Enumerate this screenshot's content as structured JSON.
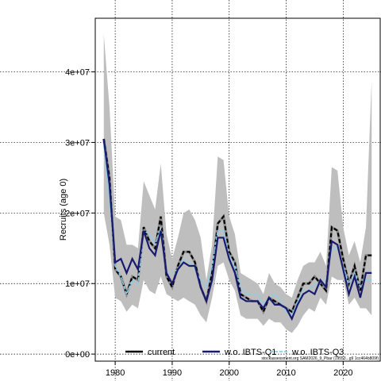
{
  "chart_data": {
    "type": "line",
    "title": "",
    "xlabel": "",
    "ylabel": "Recruits (age 0)",
    "xlim": [
      1976.5,
      2026.5
    ],
    "ylim": [
      -1000000,
      47600000
    ],
    "x_ticks": [
      1980,
      1990,
      2000,
      2010,
      2020
    ],
    "y_ticks": [
      0,
      10000000,
      20000000,
      30000000,
      40000000
    ],
    "y_tick_labels": [
      "0e+00",
      "1e+07",
      "2e+07",
      "3e+07",
      "4e+07"
    ],
    "grid": true,
    "legend_position": "bottom",
    "footnote": "stockassessment.org SAM2026_9_Pbar (19553...g9 1cc464b809f)",
    "x": [
      1978,
      1979,
      1980,
      1981,
      1982,
      1983,
      1984,
      1985,
      1986,
      1987,
      1988,
      1989,
      1990,
      1991,
      1992,
      1993,
      1994,
      1995,
      1996,
      1997,
      1998,
      1999,
      2000,
      2001,
      2002,
      2003,
      2004,
      2005,
      2006,
      2007,
      2008,
      2009,
      2010,
      2011,
      2012,
      2013,
      2014,
      2015,
      2016,
      2017,
      2018,
      2019,
      2020,
      2021,
      2022,
      2023,
      2024,
      2025
    ],
    "confidence_band": {
      "lower": [
        20000000,
        15500000,
        8000000,
        7500000,
        6000000,
        7000000,
        6500000,
        10500000,
        9000000,
        8500000,
        11000000,
        8500000,
        8000000,
        7500000,
        8000000,
        7500000,
        7000000,
        5500000,
        4500000,
        8000000,
        12500000,
        13000000,
        10500000,
        9000000,
        5500000,
        5000000,
        5000000,
        5000000,
        4000000,
        5000000,
        4500000,
        4500000,
        3500000,
        3000000,
        4000000,
        5500000,
        6500000,
        6000000,
        8000000,
        7000000,
        11000000,
        10500000,
        10500000,
        7000000,
        8000000,
        6500000,
        6500000,
        5500000
      ],
      "upper": [
        45300000,
        35000000,
        19500000,
        19000000,
        15500000,
        15500000,
        15000000,
        24500000,
        22500000,
        20500000,
        27000000,
        17000000,
        13500000,
        16500000,
        20000000,
        20500000,
        19000000,
        16500000,
        10500000,
        15500000,
        28000000,
        27500000,
        19500000,
        17000000,
        11500000,
        11000000,
        10500000,
        10000000,
        8500000,
        11500000,
        10000000,
        9500000,
        8500000,
        8000000,
        10500000,
        12500000,
        13000000,
        13000000,
        14500000,
        12500000,
        26500000,
        26000000,
        18000000,
        14000000,
        16000000,
        13000000,
        18000000,
        38800000
      ]
    },
    "series": [
      {
        "name": "current",
        "color": "#000000",
        "style": "dashed-over-gray",
        "values": [
          30500000,
          25000000,
          12000000,
          11000000,
          8500000,
          11000000,
          10500000,
          18000000,
          16000000,
          15000000,
          19500000,
          11000000,
          9500000,
          12500000,
          14500000,
          14500000,
          13000000,
          9500000,
          7500000,
          11500000,
          18500000,
          19500000,
          14500000,
          13000000,
          8500000,
          8000000,
          7500000,
          7500000,
          6000000,
          8000000,
          7500000,
          7000000,
          6500000,
          6000000,
          8000000,
          10000000,
          10000000,
          11000000,
          10000000,
          9000000,
          18000000,
          17500000,
          13500000,
          10000000,
          12500000,
          9000000,
          14000000,
          14000000
        ]
      },
      {
        "name": "w.o. IBTS-Q1",
        "color": "#191970",
        "style": "solid",
        "values": [
          30500000,
          24000000,
          13000000,
          13500000,
          11500000,
          13500000,
          12000000,
          17500000,
          15000000,
          14000000,
          17500000,
          11500000,
          10000000,
          12000000,
          13000000,
          12500000,
          12500000,
          9500000,
          7500000,
          10500000,
          16500000,
          16500000,
          13500000,
          11500000,
          8000000,
          7500000,
          7500000,
          7500000,
          6500000,
          8000000,
          7000000,
          7000000,
          6500000,
          5000000,
          7000000,
          8500000,
          9000000,
          8500000,
          10500000,
          9500000,
          16000000,
          15500000,
          12000000,
          8500000,
          11000000,
          8000000,
          11500000,
          11500000
        ]
      },
      {
        "name": "w.o. IBTS-Q3",
        "color": "#87ceeb",
        "style": "dashed",
        "values": [
          29500000,
          22000000,
          12500000,
          11000000,
          8500000,
          10500000,
          10000000,
          17500000,
          17000000,
          15500000,
          18000000,
          11500000,
          11500000,
          12000000,
          13500000,
          13000000,
          12000000,
          10500000,
          9500000,
          12500000,
          17500000,
          17500000,
          14000000,
          12500000,
          9500000,
          8500000,
          8500000,
          8500000,
          7000000,
          8000000,
          8500000,
          7500000,
          6000000,
          5500000,
          7500000,
          9000000,
          9000000,
          10000000,
          10000000,
          10500000,
          15000000,
          15000000,
          12500000,
          10000000,
          11500000,
          9500000,
          10500000,
          10500000
        ]
      }
    ]
  }
}
